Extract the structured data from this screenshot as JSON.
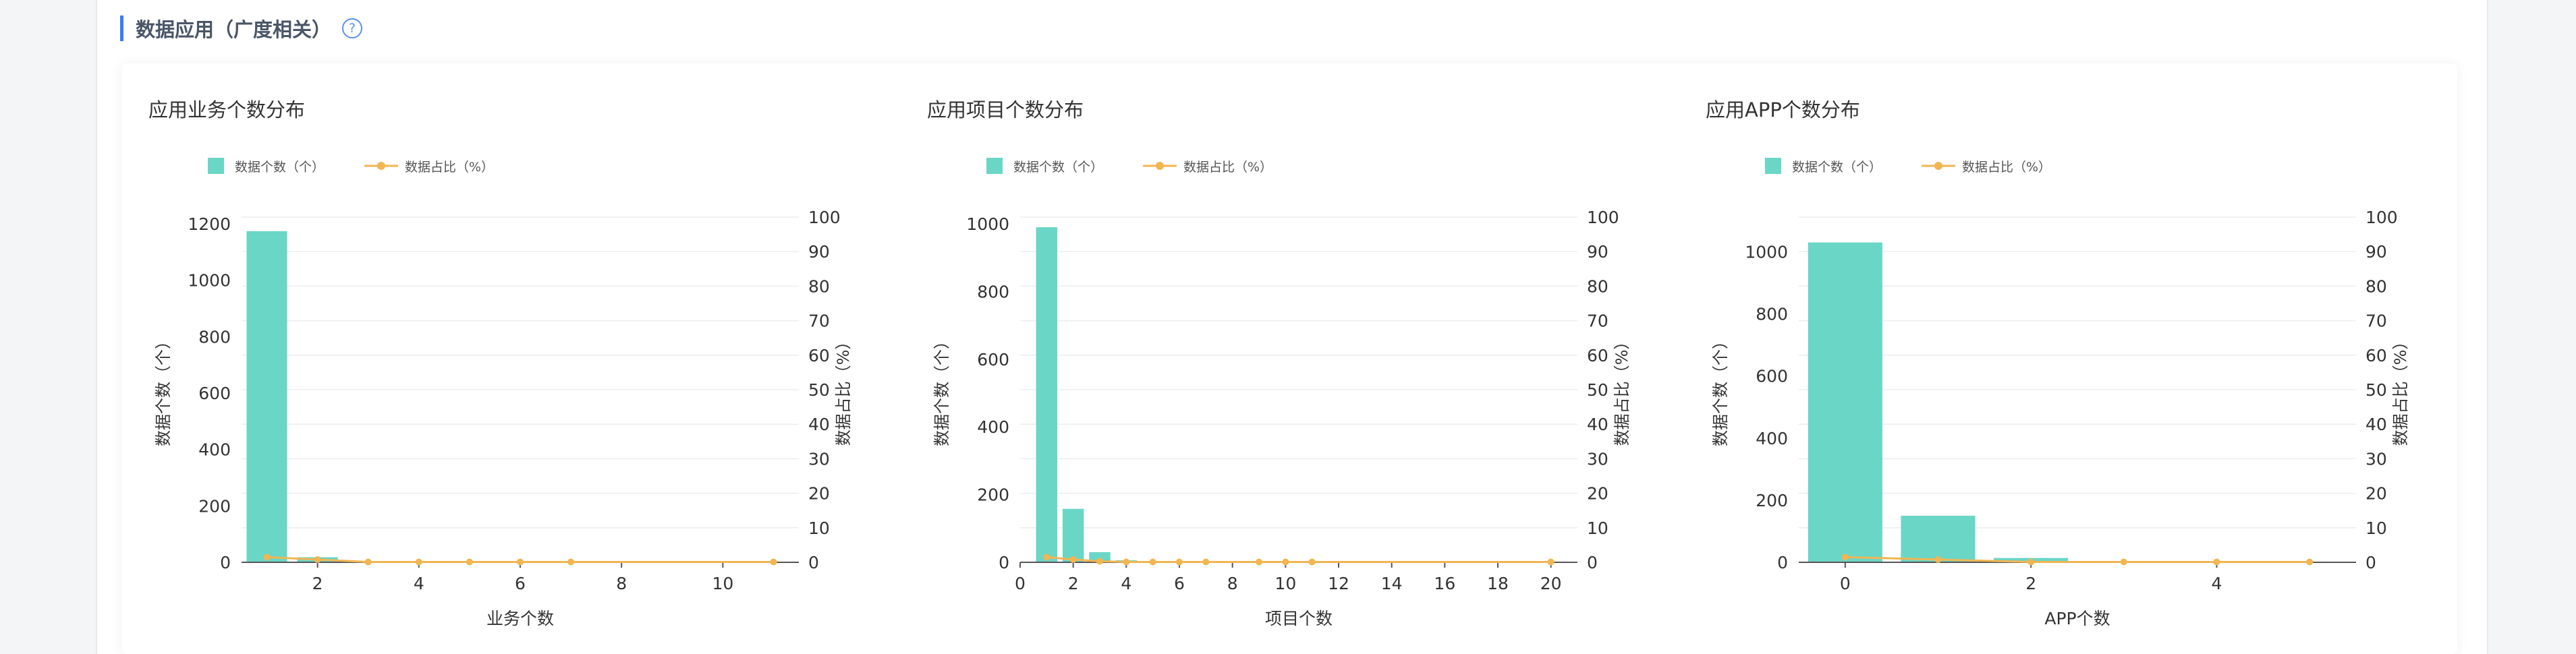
{
  "section": {
    "title": "数据应用（广度相关）",
    "help_icon": "?"
  },
  "colors": {
    "bar": "#6ad6c6",
    "line": "#f1b552",
    "accent": "#3a7afe",
    "grid": "#ebedf0",
    "axis": "#333333"
  },
  "chart_data": [
    {
      "type": "bar+line",
      "title": "应用业务个数分布",
      "legend": {
        "bar": "数据个数（个）",
        "line": "数据占比（%）",
        "position": "top-left"
      },
      "xlabel": "业务个数",
      "ylabel_left": "数据个数（个）",
      "ylabel_right": "数据占比（%）",
      "x_range": [
        0.5,
        11.5
      ],
      "x_ticks": [
        2,
        4,
        6,
        8,
        10
      ],
      "y_left_range": [
        0,
        1200
      ],
      "y_left_ticks": [
        0,
        200,
        400,
        600,
        800,
        1000,
        1200
      ],
      "y_right_range": [
        0,
        100
      ],
      "y_right_ticks": [
        0,
        10,
        20,
        30,
        40,
        50,
        60,
        70,
        80,
        90,
        100
      ],
      "bar_width": 0.8,
      "bars": [
        {
          "x": 1,
          "value": 1174
        },
        {
          "x": 2,
          "value": 18
        },
        {
          "x": 3,
          "value": 3
        },
        {
          "x": 4,
          "value": 2
        },
        {
          "x": 5,
          "value": 1
        },
        {
          "x": 6,
          "value": 1
        },
        {
          "x": 7,
          "value": 1
        },
        {
          "x": 11,
          "value": 1
        }
      ],
      "line": [
        {
          "x": 1,
          "value": 1.5
        },
        {
          "x": 2,
          "value": 0.8
        },
        {
          "x": 3,
          "value": 0.1
        },
        {
          "x": 4,
          "value": 0.1
        },
        {
          "x": 5,
          "value": 0.1
        },
        {
          "x": 6,
          "value": 0.1
        },
        {
          "x": 7,
          "value": 0.1
        },
        {
          "x": 11,
          "value": 0.1
        }
      ],
      "grid": true
    },
    {
      "type": "bar+line",
      "title": "应用项目个数分布",
      "legend": {
        "bar": "数据个数（个）",
        "line": "数据占比（%）",
        "position": "top-left"
      },
      "xlabel": "项目个数",
      "ylabel_left": "数据个数（个）",
      "ylabel_right": "数据占比（%）",
      "x_range": [
        0,
        21
      ],
      "x_ticks": [
        0,
        2,
        4,
        6,
        8,
        10,
        12,
        14,
        16,
        18,
        20
      ],
      "y_left_range": [
        0,
        1000
      ],
      "y_left_ticks": [
        0,
        200,
        400,
        600,
        800,
        1000
      ],
      "y_right_range": [
        0,
        100
      ],
      "y_right_ticks": [
        0,
        10,
        20,
        30,
        40,
        50,
        60,
        70,
        80,
        90,
        100
      ],
      "bar_width": 0.8,
      "bars": [
        {
          "x": 1,
          "value": 990
        },
        {
          "x": 2,
          "value": 158
        },
        {
          "x": 3,
          "value": 30
        },
        {
          "x": 4,
          "value": 6
        },
        {
          "x": 5,
          "value": 3
        },
        {
          "x": 6,
          "value": 2
        },
        {
          "x": 7,
          "value": 1
        },
        {
          "x": 9,
          "value": 1
        },
        {
          "x": 10,
          "value": 1
        },
        {
          "x": 11,
          "value": 1
        },
        {
          "x": 20,
          "value": 1
        }
      ],
      "line": [
        {
          "x": 1,
          "value": 1.5
        },
        {
          "x": 2,
          "value": 0.8
        },
        {
          "x": 3,
          "value": 0.3
        },
        {
          "x": 4,
          "value": 0.1
        },
        {
          "x": 5,
          "value": 0.1
        },
        {
          "x": 6,
          "value": 0.1
        },
        {
          "x": 7,
          "value": 0.1
        },
        {
          "x": 9,
          "value": 0.1
        },
        {
          "x": 10,
          "value": 0.1
        },
        {
          "x": 11,
          "value": 0.1
        },
        {
          "x": 20,
          "value": 0.1
        }
      ],
      "grid": true
    },
    {
      "type": "bar+line",
      "title": "应用APP个数分布",
      "legend": {
        "bar": "数据个数（个）",
        "line": "数据占比（%）",
        "position": "top-left"
      },
      "xlabel": "APP个数",
      "ylabel_left": "数据个数（个）",
      "ylabel_right": "数据占比（%）",
      "x_range": [
        -0.5,
        5.5
      ],
      "x_ticks": [
        0,
        2,
        4
      ],
      "y_left_range": [
        0,
        1000
      ],
      "y_left_ticks": [
        0,
        200,
        400,
        600,
        800,
        1000
      ],
      "y_left_max_display": 1090,
      "y_right_range": [
        0,
        100
      ],
      "y_right_ticks": [
        0,
        10,
        20,
        30,
        40,
        50,
        60,
        70,
        80,
        90,
        100
      ],
      "bar_width": 0.8,
      "bars": [
        {
          "x": 0,
          "value": 1030
        },
        {
          "x": 1,
          "value": 150
        },
        {
          "x": 2,
          "value": 14
        },
        {
          "x": 3,
          "value": 2
        },
        {
          "x": 4,
          "value": 1
        },
        {
          "x": 5,
          "value": 1
        }
      ],
      "line": [
        {
          "x": 0,
          "value": 1.5
        },
        {
          "x": 1,
          "value": 0.8
        },
        {
          "x": 2,
          "value": 0.1
        },
        {
          "x": 3,
          "value": 0.1
        },
        {
          "x": 4,
          "value": 0.1
        },
        {
          "x": 5,
          "value": 0.1
        }
      ],
      "grid": true
    }
  ]
}
